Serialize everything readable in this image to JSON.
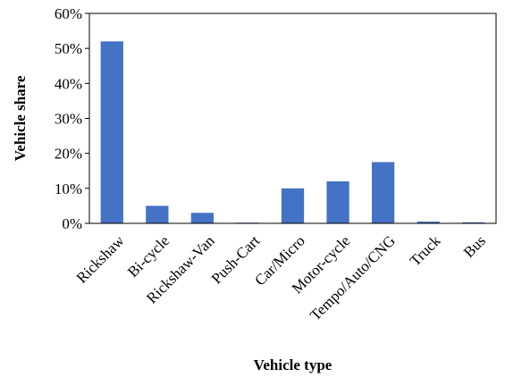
{
  "chart_data": {
    "type": "bar",
    "xlabel": "Vehicle type",
    "ylabel": "Vehicle share",
    "categories": [
      "Rickshaw",
      "Bi-cycle",
      "Rickshaw-Van",
      "Push-Cart",
      "Car/Micro",
      "Motor-cycle",
      "Tempo/Auto/CNG",
      "Truck",
      "Bus"
    ],
    "values": [
      0.52,
      0.05,
      0.03,
      0.002,
      0.1,
      0.12,
      0.175,
      0.005,
      0.003
    ],
    "ylim": [
      0,
      0.6
    ],
    "yticks": [
      0,
      0.1,
      0.2,
      0.3,
      0.4,
      0.5,
      0.6
    ],
    "ytick_labels": [
      "0%",
      "10%",
      "20%",
      "30%",
      "40%",
      "50%",
      "60%"
    ],
    "grid": false,
    "legend": "none",
    "bar_color": "#4472C4"
  }
}
